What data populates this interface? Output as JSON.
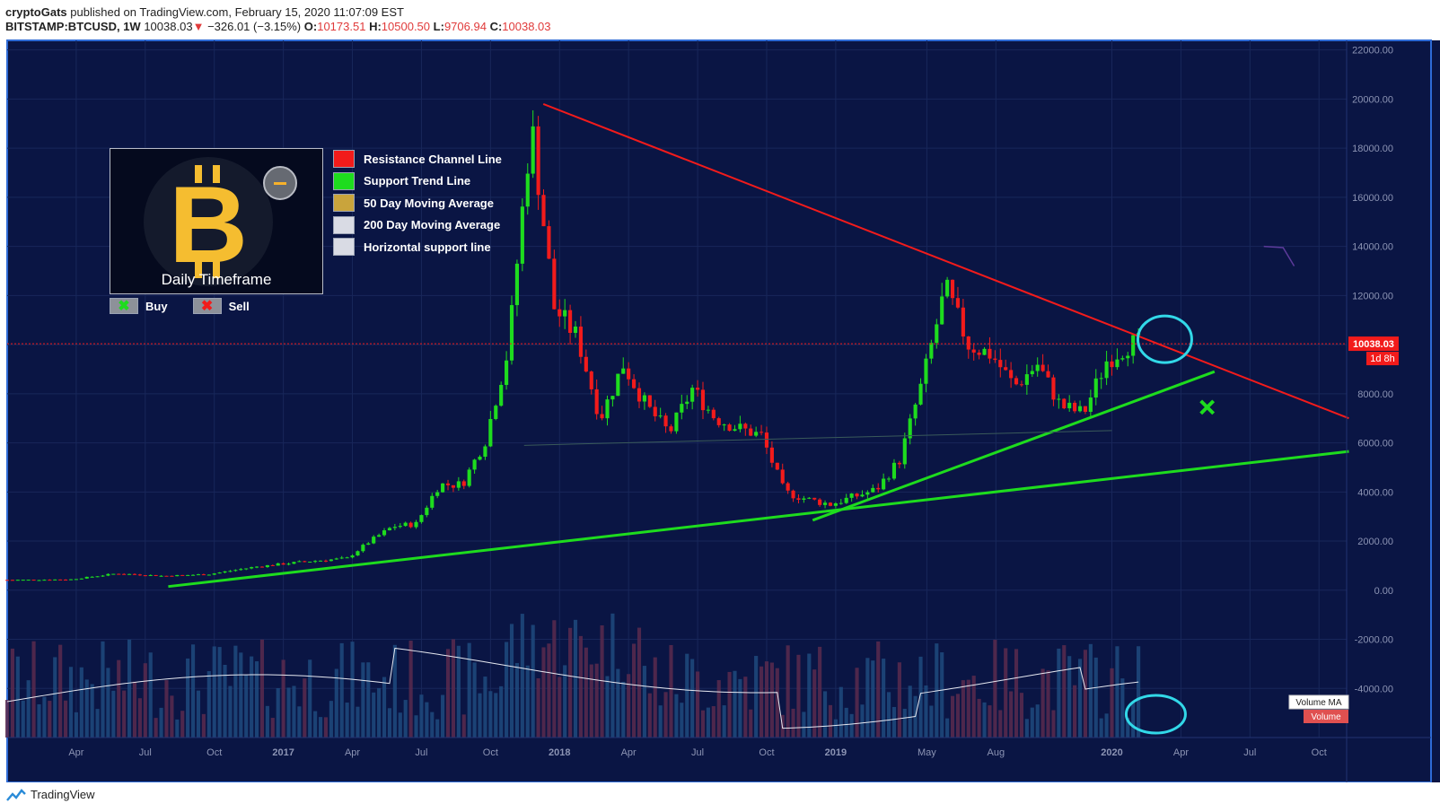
{
  "header": {
    "author": "cryptoGats",
    "published": "published on TradingView.com, February 15, 2020 11:07:09 EST",
    "symbol": "BITSTAMP:BTCUSD, 1W",
    "last": "10038.03",
    "arrow": "▼",
    "change": "−326.01 (−3.15%)",
    "o_label": "O:",
    "o_value": "10173.51",
    "h_label": "H:",
    "h_value": "10500.50",
    "l_label": "L:",
    "l_value": "9706.94",
    "c_label": "C:",
    "c_value": "10038.03"
  },
  "footer": {
    "brand": "TradingView"
  },
  "legend": {
    "title": "Daily Timeframe",
    "items": [
      {
        "label": "Resistance Channel Line",
        "color": "#f21b1b"
      },
      {
        "label": "Support Trend Line",
        "color": "#1edc1e"
      },
      {
        "label": "50 Day Moving Average",
        "color": "#c9a43c"
      },
      {
        "label": "200 Day Moving Average",
        "color": "#d9dbe4"
      },
      {
        "label": "Horizontal support line",
        "color": "#d9dbe4"
      }
    ],
    "buy_label": "Buy",
    "sell_label": "Sell",
    "buy_icon": "✖",
    "sell_icon": "✖"
  },
  "colors": {
    "background": "#0a1544",
    "grid": "#18275a",
    "up": "#1edc1e",
    "down": "#f21b1b",
    "resistance": "#f21b1b",
    "support": "#1edc1e",
    "annotation": "#32d8e8",
    "axis_text": "#8c94b4"
  },
  "chart_data": {
    "type": "candlestick",
    "title": "BITSTAMP:BTCUSD, 1W",
    "ylim": [
      -6000,
      22500
    ],
    "y_ticks": [
      "22000.00",
      "20000.00",
      "18000.00",
      "16000.00",
      "14000.00",
      "12000.00",
      "10000.00",
      "8000.00",
      "6000.00",
      "4000.00",
      "2000.00",
      "0.00",
      "-2000.00",
      "-4000.00"
    ],
    "x_ticks": [
      "Apr",
      "Jul",
      "Oct",
      "2017",
      "Apr",
      "Jul",
      "Oct",
      "2018",
      "Apr",
      "Jul",
      "Oct",
      "2019",
      "May",
      "Aug",
      "2020",
      "Apr",
      "Jul",
      "Oct"
    ],
    "last_price_label": "10038.03",
    "countdown_label": "1d 8h",
    "volume_ma_label": "Volume MA",
    "volume_label": "Volume",
    "lines": [
      {
        "name": "Resistance Channel Line",
        "from": [
          "2017-12-10",
          19800
        ],
        "to": [
          "2020-11-10",
          7000
        ]
      },
      {
        "name": "Support Trend Line (long)",
        "from": [
          "2016-08-01",
          150
        ],
        "to": [
          "2020-11-10",
          5650
        ]
      },
      {
        "name": "Support Trend Line (short)",
        "from": [
          "2018-12-01",
          2850
        ],
        "to": [
          "2020-05-15",
          8900
        ]
      },
      {
        "name": "Horizontal support line",
        "from": [
          "2017-11-15",
          5900
        ],
        "to": [
          "2020-01-01",
          6500
        ]
      }
    ],
    "candles_weekly_close": [
      [
        "2016-02",
        420
      ],
      [
        "2016-04",
        440
      ],
      [
        "2016-06",
        680
      ],
      [
        "2016-08",
        580
      ],
      [
        "2016-10",
        650
      ],
      [
        "2016-12",
        950
      ],
      [
        "2017-02",
        1150
      ],
      [
        "2017-04",
        1300
      ],
      [
        "2017-05",
        2000
      ],
      [
        "2017-06",
        2600
      ],
      [
        "2017-07",
        2700
      ],
      [
        "2017-08",
        4300
      ],
      [
        "2017-09",
        4300
      ],
      [
        "2017-10",
        6100
      ],
      [
        "2017-11",
        9800
      ],
      [
        "2017-12",
        19000
      ],
      [
        "2018-01",
        11500
      ],
      [
        "2018-02",
        10300
      ],
      [
        "2018-03",
        7000
      ],
      [
        "2018-04",
        9200
      ],
      [
        "2018-05",
        7500
      ],
      [
        "2018-06",
        6400
      ],
      [
        "2018-07",
        8200
      ],
      [
        "2018-08",
        7000
      ],
      [
        "2018-09",
        6600
      ],
      [
        "2018-10",
        6300
      ],
      [
        "2018-11",
        4000
      ],
      [
        "2018-12",
        3700
      ],
      [
        "2019-01",
        3500
      ],
      [
        "2019-02",
        3800
      ],
      [
        "2019-03",
        4100
      ],
      [
        "2019-04",
        5300
      ],
      [
        "2019-05",
        8500
      ],
      [
        "2019-06",
        12300
      ],
      [
        "2019-07",
        10000
      ],
      [
        "2019-08",
        9600
      ],
      [
        "2019-09",
        8300
      ],
      [
        "2019-10",
        9200
      ],
      [
        "2019-11",
        7500
      ],
      [
        "2019-12",
        7200
      ],
      [
        "2020-01",
        9350
      ],
      [
        "2020-02",
        10038
      ]
    ]
  }
}
